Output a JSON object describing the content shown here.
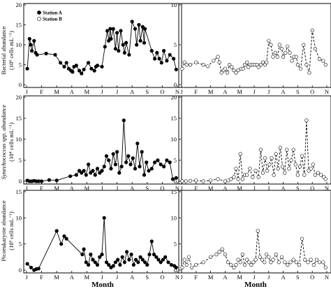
{
  "figure": {
    "month_ticks": [
      "J",
      "F",
      "M",
      "A",
      "M",
      "J",
      "J",
      "A",
      "S",
      "O",
      "N"
    ],
    "xlabel": "Month",
    "legend": [
      "Station A",
      "Station B"
    ],
    "colors": {
      "ink": "#000000",
      "background": "#ffffff"
    }
  },
  "chart_data": [
    {
      "type": "line",
      "panel": "bacteria-station-a",
      "ylabel_line1": "Bacterial abundance",
      "ylabel_line2": "(10⁶ cells mL⁻¹)",
      "ylim": [
        0,
        20
      ],
      "yticks": [
        0,
        5,
        10,
        15,
        20
      ],
      "xlim": [
        0,
        10
      ],
      "series": [
        {
          "name": "Station A",
          "marker": "filled-circle",
          "line": "solid",
          "x": [
            0.05,
            0.2,
            0.28,
            0.35,
            0.5,
            0.6,
            0.7,
            1.3,
            1.9,
            2.25,
            2.5,
            2.65,
            2.8,
            2.95,
            3.05,
            3.15,
            3.3,
            3.5,
            3.65,
            3.8,
            4.1,
            4.3,
            4.5,
            4.6,
            4.7,
            5.0,
            5.2,
            5.35,
            5.45,
            5.55,
            5.6,
            5.75,
            5.9,
            6.0,
            6.1,
            6.25,
            6.4,
            6.5,
            6.6,
            6.8,
            7.0,
            7.2,
            7.3,
            7.45,
            7.55,
            7.7,
            7.8,
            7.85,
            8.3,
            8.5,
            8.65,
            8.8,
            8.95,
            9.1,
            9.3,
            9.5,
            9.75,
            9.92
          ],
          "y": [
            4.0,
            11.5,
            10.0,
            8.5,
            11.0,
            8.0,
            7.5,
            7.8,
            7.5,
            5.5,
            4.5,
            5.5,
            4.0,
            3.5,
            3.2,
            4.5,
            4.8,
            3.5,
            2.8,
            3.8,
            5.5,
            4.0,
            3.5,
            4.5,
            4.8,
            4.5,
            9.5,
            13.5,
            11.0,
            14.0,
            11.5,
            14.0,
            9.0,
            13.0,
            8.5,
            13.5,
            10.0,
            8.0,
            10.5,
            7.5,
            15.8,
            14.0,
            10.0,
            15.0,
            11.0,
            14.5,
            10.5,
            14.0,
            8.5,
            6.5,
            8.0,
            6.5,
            5.5,
            8.5,
            6.0,
            7.5,
            6.5,
            3.8
          ]
        }
      ]
    },
    {
      "type": "line",
      "panel": "bacteria-station-b",
      "ylim": [
        0,
        10
      ],
      "yticks": [
        0,
        5,
        10
      ],
      "xlim": [
        0,
        10
      ],
      "series": [
        {
          "name": "Station B",
          "marker": "open-circle",
          "line": "dashed",
          "x": [
            0.05,
            0.2,
            0.35,
            0.6,
            1.0,
            1.5,
            1.8,
            2.2,
            2.5,
            2.6,
            2.75,
            2.9,
            3.0,
            3.15,
            3.3,
            3.45,
            3.6,
            3.75,
            3.9,
            4.1,
            4.25,
            4.35,
            4.5,
            4.6,
            4.75,
            4.9,
            5.05,
            5.2,
            5.3,
            5.45,
            5.6,
            5.75,
            5.85,
            6.0,
            6.15,
            6.3,
            6.45,
            6.6,
            6.75,
            6.9,
            7.0,
            7.15,
            7.3,
            7.45,
            7.6,
            7.75,
            7.9,
            8.0,
            8.2,
            8.4,
            8.6,
            8.8,
            9.0,
            9.2,
            9.5,
            9.75,
            9.92
          ],
          "y": [
            2.0,
            2.8,
            2.5,
            2.5,
            2.8,
            2.5,
            2.3,
            3.0,
            3.5,
            2.8,
            1.5,
            1.8,
            2.0,
            1.5,
            2.5,
            2.2,
            1.8,
            1.5,
            1.8,
            2.0,
            2.0,
            2.5,
            2.8,
            2.2,
            2.5,
            2.5,
            2.5,
            2.5,
            2.2,
            2.5,
            2.8,
            2.5,
            2.8,
            5.5,
            5.0,
            3.5,
            4.0,
            3.5,
            5.0,
            4.5,
            3.5,
            4.0,
            4.8,
            4.0,
            3.0,
            3.5,
            3.5,
            2.5,
            2.0,
            5.0,
            2.5,
            1.5,
            6.8,
            4.5,
            3.2,
            3.0,
            2.5
          ]
        }
      ]
    },
    {
      "type": "line",
      "panel": "synechococcus-station-a",
      "ylabel_line1": "Synechococcus spp. abundance",
      "ylabel_line2": "(10⁴ cells mL⁻¹)",
      "ylim": [
        0,
        20
      ],
      "yticks": [
        0,
        5,
        10,
        15,
        20
      ],
      "xlim": [
        0,
        10
      ],
      "series": [
        {
          "name": "Station A",
          "marker": "filled-circle",
          "line": "solid",
          "x": [
            0.05,
            0.2,
            0.35,
            0.5,
            0.65,
            0.8,
            1.0,
            1.5,
            2.0,
            2.9,
            3.3,
            3.5,
            3.65,
            3.8,
            3.95,
            4.1,
            4.25,
            4.4,
            4.55,
            4.7,
            4.85,
            5.0,
            5.15,
            5.3,
            5.45,
            5.6,
            5.75,
            5.9,
            6.0,
            6.15,
            6.3,
            6.45,
            6.6,
            6.75,
            6.9,
            7.05,
            7.2,
            7.35,
            7.5,
            7.65,
            7.8,
            7.95,
            8.1,
            8.3,
            8.5,
            8.7,
            8.9,
            9.1,
            9.3,
            9.5,
            9.7,
            9.92
          ],
          "y": [
            0.2,
            0.0,
            0.0,
            0.1,
            0.0,
            0.0,
            0.0,
            0.3,
            0.2,
            1.2,
            1.5,
            2.5,
            2.0,
            2.5,
            1.5,
            4.0,
            2.0,
            2.5,
            1.5,
            3.0,
            2.0,
            2.5,
            3.5,
            6.0,
            5.0,
            3.0,
            6.5,
            4.0,
            7.0,
            2.0,
            3.5,
            14.5,
            4.5,
            6.0,
            4.0,
            5.5,
            3.0,
            9.0,
            3.5,
            7.0,
            1.5,
            4.5,
            2.5,
            3.0,
            4.5,
            5.0,
            4.0,
            3.5,
            5.0,
            4.5,
            0.5,
            0.8
          ]
        }
      ]
    },
    {
      "type": "line",
      "panel": "synechococcus-station-b",
      "ylim": [
        0,
        20
      ],
      "yticks": [
        0,
        5,
        10,
        15,
        20
      ],
      "xlim": [
        0,
        10
      ],
      "series": [
        {
          "name": "Station B",
          "marker": "open-circle",
          "line": "dashed",
          "x": [
            0.05,
            0.3,
            0.6,
            1.0,
            1.5,
            2.0,
            2.5,
            3.0,
            3.2,
            3.4,
            3.6,
            3.75,
            3.9,
            4.05,
            4.2,
            4.35,
            4.5,
            4.7,
            4.9,
            5.1,
            5.3,
            5.45,
            5.6,
            5.75,
            5.9,
            6.05,
            6.2,
            6.35,
            6.5,
            6.65,
            6.8,
            6.95,
            7.1,
            7.25,
            7.4,
            7.55,
            7.7,
            7.85,
            8.0,
            8.15,
            8.3,
            8.45,
            8.6,
            8.75,
            8.9,
            9.05,
            9.2,
            9.4,
            9.6,
            9.8,
            9.92
          ],
          "y": [
            0.0,
            0.0,
            0.1,
            0.2,
            0.0,
            0.2,
            0.5,
            0.0,
            0.2,
            0.5,
            1.0,
            3.0,
            0.5,
            6.5,
            0.5,
            1.5,
            1.5,
            3.0,
            1.0,
            2.5,
            1.0,
            7.5,
            2.0,
            5.5,
            2.5,
            4.0,
            5.5,
            1.5,
            6.5,
            3.0,
            8.0,
            3.5,
            2.0,
            7.5,
            3.0,
            5.0,
            7.5,
            4.0,
            1.5,
            3.5,
            6.0,
            1.5,
            14.5,
            2.5,
            3.0,
            4.0,
            1.5,
            2.0,
            1.5,
            1.0,
            0.5
          ]
        }
      ]
    },
    {
      "type": "line",
      "panel": "picoeukaryote-station-a",
      "ylabel_line1": "Picoeukaryote abundance",
      "ylabel_line2": "(10³ cells mL⁻¹)",
      "ylim": [
        0,
        15
      ],
      "yticks": [
        0,
        5,
        10,
        15
      ],
      "xlim": [
        0,
        10
      ],
      "series": [
        {
          "name": "Station A",
          "marker": "filled-circle",
          "line": "solid",
          "x": [
            0.05,
            0.3,
            0.5,
            0.65,
            0.8,
            2.0,
            2.3,
            2.5,
            2.65,
            3.7,
            3.8,
            3.95,
            4.1,
            4.25,
            4.4,
            4.55,
            4.7,
            4.85,
            5.0,
            5.15,
            5.3,
            5.45,
            5.6,
            5.75,
            5.9,
            6.05,
            6.2,
            6.35,
            6.5,
            6.65,
            6.8,
            6.95,
            7.1,
            7.25,
            7.4,
            7.55,
            7.7,
            7.85,
            8.0,
            8.15,
            8.3,
            8.45,
            8.6,
            8.75,
            8.9,
            9.05,
            9.2,
            9.4,
            9.6,
            9.8,
            9.92
          ],
          "y": [
            1.2,
            0.5,
            0.0,
            0.2,
            0.3,
            7.5,
            5.0,
            6.5,
            6.0,
            3.0,
            4.0,
            1.5,
            1.0,
            3.0,
            2.0,
            1.5,
            1.0,
            2.5,
            3.0,
            10.0,
            1.5,
            1.0,
            0.5,
            0.8,
            1.5,
            2.0,
            1.0,
            2.5,
            1.5,
            3.5,
            2.0,
            3.0,
            1.0,
            2.0,
            1.5,
            2.5,
            2.0,
            1.5,
            1.0,
            3.0,
            5.5,
            3.0,
            2.5,
            2.0,
            1.5,
            2.0,
            2.5,
            1.5,
            1.0,
            0.8,
            0.5
          ]
        }
      ]
    },
    {
      "type": "line",
      "panel": "picoeukaryote-station-b",
      "ylim": [
        0,
        15
      ],
      "yticks": [
        0,
        5,
        10,
        15
      ],
      "xlim": [
        0,
        10
      ],
      "series": [
        {
          "name": "Station B",
          "marker": "open-circle",
          "line": "dashed",
          "x": [
            0.05,
            0.2,
            0.35,
            0.5,
            0.7,
            1.0,
            1.5,
            2.0,
            2.4,
            2.6,
            2.8,
            3.0,
            3.2,
            3.4,
            3.6,
            3.75,
            3.9,
            4.05,
            4.2,
            4.35,
            4.5,
            4.65,
            4.8,
            4.95,
            5.1,
            5.25,
            5.4,
            5.55,
            5.7,
            5.85,
            6.0,
            6.15,
            6.3,
            6.5,
            6.7,
            6.9,
            7.1,
            7.3,
            7.5,
            7.7,
            7.9,
            8.1,
            8.3,
            8.5,
            8.7,
            8.9,
            9.1,
            9.3,
            9.5,
            9.75,
            9.92
          ],
          "y": [
            0.5,
            2.0,
            1.0,
            2.5,
            0.5,
            1.0,
            1.5,
            2.5,
            3.0,
            3.5,
            4.0,
            3.0,
            1.5,
            1.0,
            0.5,
            1.0,
            2.0,
            1.5,
            3.0,
            1.0,
            2.0,
            1.5,
            1.0,
            1.5,
            2.0,
            7.5,
            2.5,
            2.0,
            1.5,
            3.0,
            2.5,
            1.5,
            2.0,
            3.0,
            1.5,
            2.5,
            1.5,
            1.0,
            1.5,
            2.0,
            1.5,
            1.0,
            6.0,
            2.0,
            1.5,
            2.0,
            1.0,
            2.0,
            1.5,
            1.5,
            0.5
          ]
        }
      ]
    }
  ]
}
